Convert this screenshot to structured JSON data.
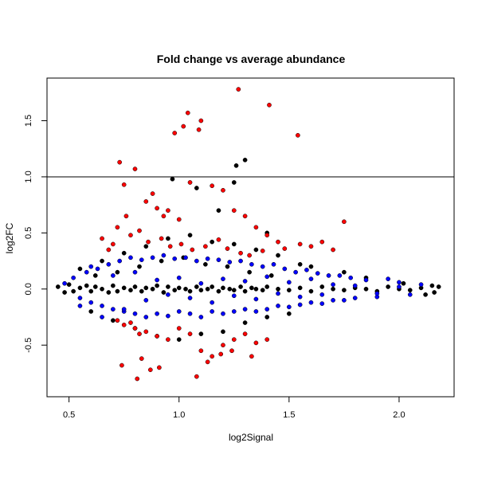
{
  "chart_data": {
    "type": "scatter",
    "title": "Fold change vs average abundance",
    "xlabel": "log2Signal",
    "ylabel": "log2FC",
    "xlim": [
      0.4,
      2.25
    ],
    "ylim": [
      -0.96,
      1.88
    ],
    "xticks": [
      0.5,
      1.0,
      1.5,
      2.0
    ],
    "xtick_labels": [
      "0.5",
      "1.0",
      "1.5",
      "2.0"
    ],
    "yticks": [
      -0.5,
      0.0,
      0.5,
      1.0,
      1.5
    ],
    "ytick_labels": [
      "-0.5",
      "0.0",
      "0.5",
      "1.0",
      "1.5"
    ],
    "reference_line": {
      "orientation": "horizontal",
      "y": 1.0
    },
    "grid": false,
    "legend": "none",
    "colors": {
      "black": "#000000",
      "blue": "#0000ff",
      "red": "#ff0000"
    },
    "series": [
      {
        "color": "black",
        "x": [
          0.45,
          0.48,
          0.5,
          0.52,
          0.55,
          0.58,
          0.6,
          0.62,
          0.65,
          0.68,
          0.7,
          0.72,
          0.75,
          0.78,
          0.8,
          0.83,
          0.85,
          0.88,
          0.9,
          0.93,
          0.95,
          0.98,
          1.0,
          1.03,
          1.05,
          1.08,
          1.1,
          1.13,
          1.15,
          1.18,
          1.2,
          1.23,
          1.25,
          1.28,
          1.3,
          1.33,
          1.35,
          1.38,
          1.4,
          1.45,
          1.5,
          1.55,
          1.6,
          1.65,
          1.7,
          1.75,
          1.8,
          1.85,
          1.9,
          1.95,
          2.0,
          2.05,
          2.1,
          2.15,
          2.18,
          0.55,
          0.65,
          0.75,
          0.85,
          0.95,
          1.05,
          1.15,
          1.25,
          1.35,
          1.45,
          1.55,
          0.6,
          0.7,
          0.8,
          0.9,
          1.0,
          1.1,
          1.2,
          1.3,
          1.4,
          1.5,
          0.62,
          0.72,
          0.82,
          0.92,
          1.02,
          1.12,
          1.22,
          1.32,
          1.42,
          0.97,
          1.26,
          1.3,
          1.25,
          1.08,
          1.18,
          1.4,
          1.6,
          1.75,
          1.85,
          2.02,
          2.12,
          2.16
        ],
        "y": [
          0.02,
          -0.03,
          0.04,
          -0.02,
          0.01,
          0.03,
          -0.02,
          0.02,
          0.0,
          -0.03,
          0.03,
          -0.02,
          0.01,
          -0.01,
          0.02,
          -0.02,
          0.01,
          0.0,
          0.03,
          -0.03,
          0.02,
          -0.01,
          0.01,
          0.0,
          -0.02,
          0.02,
          -0.01,
          0.0,
          0.02,
          -0.02,
          0.01,
          0.0,
          -0.01,
          0.02,
          -0.02,
          0.01,
          0.0,
          -0.01,
          0.02,
          0.0,
          -0.01,
          0.01,
          -0.02,
          0.02,
          0.0,
          -0.01,
          0.01,
          0.0,
          -0.02,
          0.02,
          0.0,
          -0.01,
          0.01,
          0.03,
          0.02,
          0.18,
          0.25,
          0.32,
          0.38,
          0.45,
          0.48,
          0.42,
          0.4,
          0.35,
          0.3,
          0.22,
          -0.2,
          -0.28,
          -0.35,
          -0.42,
          -0.45,
          -0.4,
          -0.38,
          -0.3,
          -0.25,
          -0.22,
          0.12,
          0.15,
          0.2,
          0.25,
          0.28,
          0.22,
          0.2,
          0.15,
          0.12,
          0.98,
          1.1,
          1.15,
          0.95,
          0.9,
          0.7,
          0.5,
          0.2,
          0.15,
          0.1,
          0.05,
          -0.05,
          -0.03
        ],
        "count": 97
      },
      {
        "color": "blue",
        "x": [
          0.48,
          0.52,
          0.55,
          0.58,
          0.6,
          0.63,
          0.65,
          0.68,
          0.7,
          0.73,
          0.75,
          0.78,
          0.8,
          0.83,
          0.85,
          0.88,
          0.9,
          0.93,
          0.95,
          0.98,
          1.0,
          1.03,
          1.05,
          1.08,
          1.1,
          1.13,
          1.15,
          1.18,
          1.2,
          1.23,
          1.25,
          1.28,
          1.3,
          1.33,
          1.35,
          1.38,
          1.4,
          1.43,
          1.45,
          1.48,
          1.5,
          1.53,
          1.55,
          1.58,
          1.6,
          1.63,
          1.65,
          1.68,
          1.7,
          1.73,
          1.75,
          1.78,
          1.8,
          1.85,
          1.9,
          1.95,
          2.0,
          2.05,
          2.1,
          0.55,
          0.6,
          0.65,
          0.7,
          0.75,
          0.8,
          0.85,
          0.9,
          0.95,
          1.0,
          1.05,
          1.1,
          1.15,
          1.2,
          1.25,
          1.3,
          1.35,
          1.4,
          1.45,
          1.5,
          1.55,
          1.6,
          1.65,
          1.7,
          1.8,
          1.9,
          2.0
        ],
        "y": [
          0.05,
          0.1,
          -0.08,
          0.15,
          -0.12,
          0.18,
          -0.15,
          0.22,
          -0.18,
          0.25,
          -0.2,
          0.28,
          -0.22,
          0.26,
          -0.25,
          0.28,
          -0.22,
          0.3,
          -0.24,
          0.27,
          -0.2,
          0.28,
          -0.22,
          0.25,
          -0.25,
          0.27,
          -0.2,
          0.26,
          -0.22,
          0.24,
          -0.2,
          0.25,
          -0.18,
          0.22,
          -0.2,
          0.2,
          -0.18,
          0.22,
          -0.15,
          0.18,
          -0.16,
          0.15,
          -0.14,
          0.17,
          -0.12,
          0.14,
          -0.13,
          0.12,
          -0.1,
          0.12,
          -0.1,
          0.1,
          -0.08,
          0.08,
          -0.07,
          0.09,
          0.06,
          -0.05,
          0.04,
          -0.15,
          0.2,
          -0.25,
          0.12,
          -0.18,
          0.15,
          -0.1,
          0.08,
          -0.05,
          0.1,
          -0.08,
          0.05,
          -0.12,
          0.09,
          -0.06,
          0.07,
          -0.09,
          0.11,
          -0.04,
          0.06,
          -0.07,
          0.09,
          -0.05,
          0.04,
          0.03,
          -0.04,
          0.02
        ],
        "count": 86
      },
      {
        "color": "red",
        "x": [
          1.27,
          1.41,
          1.04,
          1.1,
          1.09,
          1.02,
          0.98,
          1.54,
          0.75,
          0.73,
          0.8,
          0.85,
          0.88,
          0.9,
          0.93,
          0.95,
          1.0,
          1.05,
          1.15,
          1.2,
          1.25,
          1.3,
          1.35,
          1.4,
          1.45,
          1.55,
          1.6,
          1.65,
          1.7,
          1.75,
          0.65,
          0.68,
          0.7,
          0.72,
          0.76,
          0.78,
          0.82,
          0.86,
          0.92,
          0.96,
          1.01,
          1.06,
          1.12,
          1.18,
          1.22,
          1.28,
          1.32,
          1.38,
          1.48,
          0.72,
          0.75,
          0.78,
          0.8,
          0.82,
          0.85,
          0.9,
          0.95,
          1.0,
          1.05,
          1.1,
          1.15,
          1.2,
          1.25,
          1.3,
          1.35,
          1.4,
          0.74,
          0.81,
          0.83,
          0.87,
          0.91,
          1.08,
          1.13,
          1.19,
          1.24,
          1.33
        ],
        "y": [
          1.78,
          1.64,
          1.57,
          1.5,
          1.42,
          1.45,
          1.39,
          1.37,
          0.93,
          1.13,
          1.07,
          0.78,
          0.85,
          0.72,
          0.65,
          0.7,
          0.62,
          0.95,
          0.92,
          0.88,
          0.7,
          0.65,
          0.55,
          0.48,
          0.42,
          0.4,
          0.38,
          0.42,
          0.35,
          0.6,
          0.45,
          0.35,
          0.4,
          0.55,
          0.65,
          0.48,
          0.52,
          0.42,
          0.45,
          0.38,
          0.4,
          0.35,
          0.38,
          0.44,
          0.36,
          0.32,
          0.3,
          0.34,
          0.36,
          -0.28,
          -0.32,
          -0.3,
          -0.35,
          -0.4,
          -0.38,
          -0.42,
          -0.45,
          -0.35,
          -0.4,
          -0.55,
          -0.6,
          -0.5,
          -0.45,
          -0.4,
          -0.48,
          -0.45,
          -0.68,
          -0.8,
          -0.62,
          -0.72,
          -0.7,
          -0.78,
          -0.65,
          -0.58,
          -0.55,
          -0.6
        ],
        "count": 76
      }
    ]
  }
}
